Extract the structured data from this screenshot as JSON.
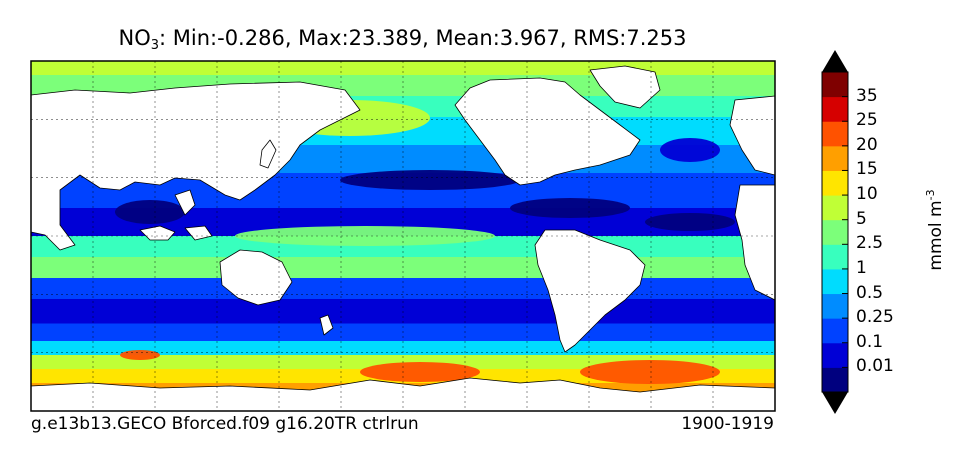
{
  "chart_data": {
    "type": "heatmap",
    "title": {
      "variable": "NO",
      "variable_subscript": "3",
      "stats_text": ": Min:-0.286, Max:23.389, Mean:3.967, RMS:7.253"
    },
    "stats": {
      "min": -0.286,
      "max": 23.389,
      "mean": 3.967,
      "rms": 7.253
    },
    "run_label": "g.e13b13.GECO Bforced.f09 g16.20TR ctrlrun",
    "period_label": "1900-1919",
    "grid": true,
    "colorbar": {
      "units": "mmol m",
      "units_exponent": "-3",
      "placement": "right",
      "extend": "both",
      "ticks": [
        "0.01",
        "0.1",
        "0.25",
        "0.5",
        "1",
        "2.5",
        "5",
        "10",
        "15",
        "20",
        "25",
        "35"
      ],
      "colors": [
        "#00007f",
        "#0000d6",
        "#0042ff",
        "#008cff",
        "#00dcfe",
        "#38ffbe",
        "#7cff7a",
        "#c0ff36",
        "#ffe500",
        "#ff9f00",
        "#ff5200",
        "#d60000",
        "#7f0000"
      ],
      "under_color": "#000000",
      "over_color": "#000000"
    },
    "map": {
      "projection": "equirectangular",
      "land_color": "#ffffff",
      "coastline_color": "#000000"
    }
  }
}
